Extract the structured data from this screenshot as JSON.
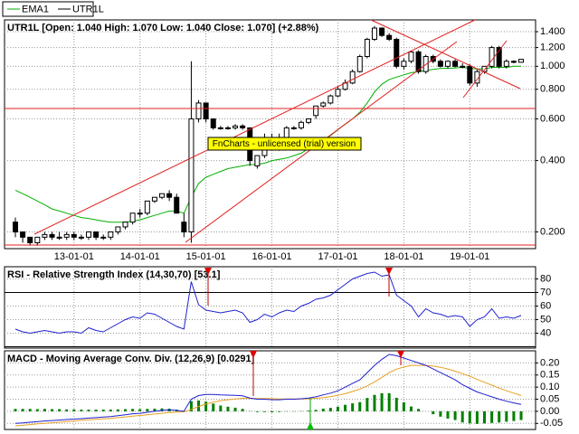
{
  "chart_data": [
    {
      "type": "candlestick",
      "title": "UTR1L [Open: 1.040  High: 1.070  Low: 1.040  Close: 1.070] (+2.88%)",
      "watermark": "FnCharts - unlicensed (trial) version",
      "categories": [
        null,
        null,
        null,
        null,
        null,
        null,
        null,
        null,
        "13-01-01",
        null,
        null,
        null,
        null,
        null,
        null,
        null,
        null,
        "14-01-01",
        null,
        null,
        null,
        null,
        null,
        null,
        null,
        null,
        "15-01-01",
        null,
        null,
        null,
        null,
        null,
        null,
        null,
        null,
        "16-01-01",
        null,
        null,
        null,
        null,
        null,
        null,
        null,
        null,
        "17-01-01",
        null,
        null,
        null,
        null,
        null,
        null,
        null,
        null,
        "18-01-01",
        null,
        null,
        null,
        null,
        null,
        null,
        null,
        null,
        "19-01-01",
        null,
        null,
        null,
        null,
        null,
        null,
        null
      ],
      "series": [
        {
          "name": "EMA1",
          "type": "line",
          "color": "#00b000",
          "values": [
            0.3,
            0.29,
            0.28,
            0.27,
            0.26,
            0.25,
            0.245,
            0.24,
            0.235,
            0.23,
            0.228,
            0.225,
            0.222,
            0.22,
            0.22,
            0.22,
            0.222,
            0.225,
            0.23,
            0.235,
            0.24,
            0.245,
            0.245,
            0.24,
            0.28,
            0.32,
            0.34,
            0.35,
            0.36,
            0.37,
            0.375,
            0.38,
            0.385,
            0.385,
            0.39,
            0.4,
            0.405,
            0.41,
            0.42,
            0.43,
            0.45,
            0.47,
            0.49,
            0.51,
            0.54,
            0.57,
            0.6,
            0.64,
            0.7,
            0.78,
            0.84,
            0.88,
            0.9,
            0.92,
            0.94,
            0.95,
            0.96,
            0.97,
            0.98,
            0.98,
            0.985,
            0.99,
            0.98,
            0.975,
            0.975,
            0.99,
            0.99,
            0.99,
            1.0,
            1.0
          ]
        },
        {
          "name": "UTR1L",
          "type": "candlestick",
          "color": "#000000",
          "open": [
            0.22,
            0.2,
            0.19,
            0.18,
            0.19,
            0.195,
            0.19,
            0.19,
            0.195,
            0.19,
            0.19,
            0.2,
            0.19,
            0.19,
            0.2,
            0.21,
            0.22,
            0.24,
            0.24,
            0.27,
            0.28,
            0.29,
            0.28,
            0.22,
            0.2,
            0.6,
            0.7,
            0.6,
            0.55,
            0.55,
            0.55,
            0.56,
            0.55,
            0.38,
            0.42,
            0.5,
            0.45,
            0.5,
            0.55,
            0.55,
            0.58,
            0.62,
            0.68,
            0.7,
            0.75,
            0.8,
            0.85,
            0.95,
            1.1,
            1.3,
            1.45,
            1.35,
            1.3,
            1.0,
            1.05,
            1.15,
            0.95,
            1.1,
            1.05,
            1.0,
            1.05,
            1.0,
            1.0,
            0.85,
            0.95,
            1.0,
            1.2,
            1.0,
            1.05,
            1.04
          ],
          "high": [
            0.23,
            0.2,
            0.19,
            0.19,
            0.2,
            0.2,
            0.2,
            0.2,
            0.2,
            0.195,
            0.2,
            0.2,
            0.195,
            0.2,
            0.21,
            0.22,
            0.24,
            0.25,
            0.27,
            0.28,
            0.29,
            0.3,
            0.29,
            0.24,
            1.05,
            0.72,
            0.7,
            0.6,
            0.56,
            0.56,
            0.57,
            0.57,
            0.55,
            0.42,
            0.52,
            0.52,
            0.52,
            0.56,
            0.56,
            0.59,
            0.6,
            0.68,
            0.71,
            0.76,
            0.82,
            0.88,
            0.97,
            1.12,
            1.32,
            1.48,
            1.46,
            1.38,
            1.32,
            1.08,
            1.16,
            1.17,
            1.12,
            1.12,
            1.07,
            1.06,
            1.07,
            1.03,
            1.02,
            0.97,
            1.0,
            1.22,
            1.22,
            1.07,
            1.06,
            1.07
          ],
          "low": [
            0.19,
            0.18,
            0.175,
            0.175,
            0.185,
            0.185,
            0.185,
            0.185,
            0.185,
            0.185,
            0.185,
            0.185,
            0.185,
            0.185,
            0.195,
            0.205,
            0.215,
            0.23,
            0.235,
            0.265,
            0.275,
            0.27,
            0.24,
            0.19,
            0.18,
            0.58,
            0.58,
            0.54,
            0.54,
            0.54,
            0.54,
            0.54,
            0.38,
            0.37,
            0.41,
            0.44,
            0.44,
            0.49,
            0.54,
            0.54,
            0.57,
            0.6,
            0.67,
            0.69,
            0.74,
            0.79,
            0.84,
            0.94,
            1.08,
            1.28,
            1.33,
            1.28,
            0.98,
            0.97,
            1.03,
            0.93,
            0.93,
            1.03,
            0.99,
            0.98,
            0.99,
            0.98,
            0.83,
            0.82,
            0.93,
            0.98,
            0.98,
            0.98,
            1.03,
            1.04
          ],
          "close": [
            0.2,
            0.19,
            0.18,
            0.19,
            0.195,
            0.19,
            0.19,
            0.195,
            0.19,
            0.19,
            0.2,
            0.19,
            0.19,
            0.2,
            0.21,
            0.22,
            0.24,
            0.24,
            0.27,
            0.28,
            0.29,
            0.28,
            0.24,
            0.2,
            0.6,
            0.7,
            0.6,
            0.55,
            0.55,
            0.55,
            0.56,
            0.55,
            0.4,
            0.42,
            0.5,
            0.45,
            0.5,
            0.55,
            0.55,
            0.58,
            0.6,
            0.68,
            0.7,
            0.75,
            0.8,
            0.85,
            0.95,
            1.1,
            1.3,
            1.45,
            1.35,
            1.3,
            1.0,
            1.05,
            1.15,
            0.95,
            1.1,
            1.05,
            1.0,
            1.05,
            1.0,
            1.0,
            0.85,
            0.95,
            1.0,
            1.2,
            1.0,
            1.05,
            1.04,
            1.07
          ]
        }
      ],
      "log_scale": true,
      "grid": true,
      "ylim": [
        0.17,
        1.57
      ],
      "yticks": [
        {
          "value": 1.4,
          "label": "1.400"
        },
        {
          "value": 1.2,
          "label": "1.200"
        },
        {
          "value": 1.0,
          "label": "1.000"
        },
        {
          "value": 0.8,
          "label": "0.800"
        },
        {
          "value": 0.6,
          "label": "0.600"
        },
        {
          "value": 0.4,
          "label": "0.400"
        },
        {
          "value": 0.2,
          "label": "0.200"
        }
      ],
      "legend": "top-left"
    },
    {
      "type": "line",
      "title": "RSI - Relative Strength Index (14,30,70) [53.1]",
      "series": [
        {
          "type": "line",
          "color": "#2020d0",
          "values": [
            43,
            41,
            40,
            41,
            42,
            41,
            40,
            41,
            41,
            40,
            44,
            42,
            41,
            44,
            47,
            50,
            52,
            51,
            55,
            54,
            51,
            48,
            45,
            43,
            78,
            61,
            57,
            56,
            55,
            56,
            57,
            55,
            48,
            50,
            54,
            52,
            55,
            57,
            56,
            60,
            62,
            65,
            66,
            68,
            72,
            76,
            80,
            82,
            84,
            85,
            82,
            83,
            68,
            64,
            60,
            52,
            58,
            55,
            54,
            52,
            53,
            52,
            45,
            50,
            52,
            58,
            51,
            52,
            51,
            53.1
          ]
        }
      ],
      "levels": [
        70,
        30
      ],
      "grid": true,
      "ylim": [
        29,
        89
      ],
      "yticks": [
        80,
        70,
        60,
        50,
        40
      ]
    },
    {
      "type": "line",
      "title": "MACD - Moving Average Conv. Div. (12,26,9) [0.0291]",
      "series": [
        {
          "type": "bar",
          "color": "#008000",
          "values": [
            0.01,
            0.01,
            0.01,
            0.009,
            0.01,
            0.009,
            0.009,
            0.008,
            0.008,
            0.007,
            0.007,
            0.007,
            0.007,
            0.007,
            0.008,
            0.009,
            0.01,
            0.009,
            0.01,
            0.011,
            0.012,
            0.011,
            0.007,
            0.002,
            0.042,
            0.045,
            0.04,
            0.032,
            0.024,
            0.019,
            0.015,
            0.01,
            0.001,
            -0.003,
            -0.003,
            -0.004,
            -0.003,
            -0.001,
            -0.001,
            0.001,
            0.003,
            0.006,
            0.011,
            0.014,
            0.019,
            0.027,
            0.033,
            0.038,
            0.055,
            0.068,
            0.075,
            0.075,
            0.056,
            0.037,
            0.02,
            0.01,
            0.0,
            -0.012,
            -0.022,
            -0.03,
            -0.036,
            -0.046,
            -0.05,
            -0.052,
            -0.05,
            -0.048,
            -0.046,
            -0.043,
            -0.04,
            -0.036
          ]
        },
        {
          "type": "line",
          "color": "#e8a020",
          "values": [
            -0.06,
            -0.058,
            -0.055,
            -0.052,
            -0.05,
            -0.047,
            -0.045,
            -0.042,
            -0.04,
            -0.037,
            -0.035,
            -0.033,
            -0.031,
            -0.029,
            -0.026,
            -0.023,
            -0.02,
            -0.017,
            -0.014,
            -0.011,
            -0.008,
            -0.005,
            -0.003,
            -0.002,
            0.008,
            0.02,
            0.03,
            0.038,
            0.044,
            0.048,
            0.051,
            0.054,
            0.054,
            0.053,
            0.053,
            0.052,
            0.051,
            0.051,
            0.051,
            0.051,
            0.052,
            0.054,
            0.057,
            0.061,
            0.066,
            0.073,
            0.082,
            0.092,
            0.105,
            0.122,
            0.14,
            0.16,
            0.174,
            0.183,
            0.19,
            0.19,
            0.19,
            0.187,
            0.182,
            0.175,
            0.166,
            0.156,
            0.145,
            0.132,
            0.12,
            0.108,
            0.096,
            0.085,
            0.075,
            0.065
          ]
        },
        {
          "type": "line",
          "color": "#2020d0",
          "values": [
            -0.05,
            -0.048,
            -0.045,
            -0.043,
            -0.04,
            -0.038,
            -0.036,
            -0.034,
            -0.032,
            -0.03,
            -0.028,
            -0.026,
            -0.024,
            -0.022,
            -0.018,
            -0.014,
            -0.01,
            -0.008,
            -0.004,
            0.0,
            0.004,
            0.006,
            0.004,
            0.0,
            0.05,
            0.065,
            0.07,
            0.07,
            0.068,
            0.067,
            0.066,
            0.064,
            0.055,
            0.05,
            0.05,
            0.048,
            0.048,
            0.05,
            0.05,
            0.052,
            0.055,
            0.06,
            0.068,
            0.075,
            0.085,
            0.1,
            0.115,
            0.13,
            0.16,
            0.19,
            0.215,
            0.235,
            0.23,
            0.22,
            0.21,
            0.2,
            0.19,
            0.175,
            0.16,
            0.145,
            0.13,
            0.11,
            0.095,
            0.08,
            0.07,
            0.06,
            0.05,
            0.042,
            0.035,
            0.029
          ]
        }
      ],
      "grid": true,
      "ylim": [
        -0.075,
        0.25
      ],
      "yticks": [
        {
          "value": 0.2,
          "label": "0.20"
        },
        {
          "value": 0.15,
          "label": "0.15"
        },
        {
          "value": 0.1,
          "label": "0.10"
        },
        {
          "value": 0.05,
          "label": "0.05"
        },
        {
          "value": 0.0,
          "label": "0.00"
        },
        {
          "value": -0.05,
          "label": "-0.05"
        }
      ]
    }
  ]
}
